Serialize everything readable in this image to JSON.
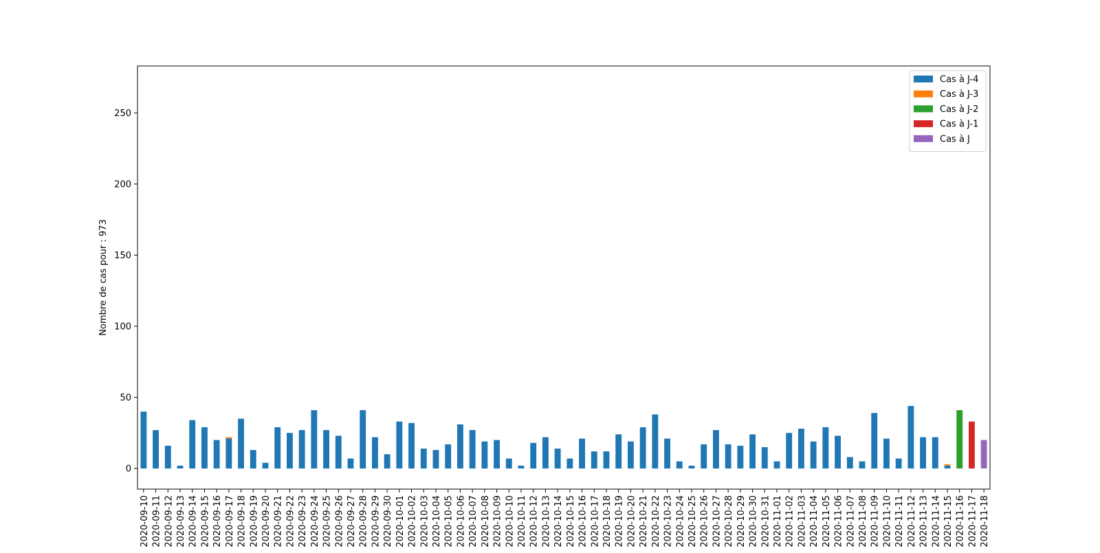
{
  "chart_data": {
    "type": "bar",
    "stacked": true,
    "title": "",
    "xlabel": "",
    "ylabel": "Nombre de cas pour : 973",
    "ylim": [
      -14.5,
      283
    ],
    "yticks": [
      0,
      50,
      100,
      150,
      200,
      250
    ],
    "grid": false,
    "legend_position": "top-right",
    "categories": [
      "2020-09-10",
      "2020-09-11",
      "2020-09-12",
      "2020-09-13",
      "2020-09-14",
      "2020-09-15",
      "2020-09-16",
      "2020-09-17",
      "2020-09-18",
      "2020-09-19",
      "2020-09-20",
      "2020-09-21",
      "2020-09-22",
      "2020-09-23",
      "2020-09-24",
      "2020-09-25",
      "2020-09-26",
      "2020-09-27",
      "2020-09-28",
      "2020-09-29",
      "2020-09-30",
      "2020-10-01",
      "2020-10-02",
      "2020-10-03",
      "2020-10-04",
      "2020-10-05",
      "2020-10-06",
      "2020-10-07",
      "2020-10-08",
      "2020-10-09",
      "2020-10-10",
      "2020-10-11",
      "2020-10-12",
      "2020-10-13",
      "2020-10-14",
      "2020-10-15",
      "2020-10-16",
      "2020-10-17",
      "2020-10-18",
      "2020-10-19",
      "2020-10-20",
      "2020-10-21",
      "2020-10-22",
      "2020-10-23",
      "2020-10-24",
      "2020-10-25",
      "2020-10-26",
      "2020-10-27",
      "2020-10-28",
      "2020-10-29",
      "2020-10-30",
      "2020-10-31",
      "2020-11-01",
      "2020-11-02",
      "2020-11-03",
      "2020-11-04",
      "2020-11-05",
      "2020-11-06",
      "2020-11-07",
      "2020-11-08",
      "2020-11-09",
      "2020-11-10",
      "2020-11-11",
      "2020-11-12",
      "2020-11-13",
      "2020-11-14",
      "2020-11-15",
      "2020-11-16",
      "2020-11-17",
      "2020-11-18"
    ],
    "series": [
      {
        "name": "Cas à J-4",
        "color": "#1f77b4",
        "values": [
          40,
          27,
          16,
          2,
          34,
          29,
          20,
          21,
          35,
          13,
          4,
          29,
          25,
          27,
          41,
          27,
          23,
          7,
          41,
          22,
          10,
          33,
          32,
          14,
          13,
          17,
          31,
          27,
          19,
          20,
          7,
          2,
          18,
          22,
          14,
          7,
          21,
          12,
          12,
          24,
          19,
          29,
          38,
          21,
          5,
          2,
          17,
          27,
          17,
          16,
          24,
          15,
          5,
          25,
          28,
          19,
          29,
          23,
          8,
          5,
          39,
          21,
          7,
          44,
          22,
          22,
          2,
          0,
          0,
          0
        ]
      },
      {
        "name": "Cas à J-3",
        "color": "#ff7f0e",
        "values": [
          0,
          0,
          0,
          0,
          0,
          0,
          0,
          1,
          0,
          0,
          0,
          0,
          0,
          0,
          0,
          0,
          0,
          0,
          0,
          0,
          0,
          0,
          0,
          0,
          0,
          0,
          0,
          0,
          0,
          0,
          0,
          0,
          0,
          0,
          0,
          0,
          0,
          0,
          0,
          0,
          0,
          0,
          0,
          0,
          0,
          0,
          0,
          0,
          0,
          0,
          0,
          0,
          0,
          0,
          0,
          0,
          0,
          0,
          0,
          0,
          0,
          0,
          0,
          0,
          0,
          0,
          1,
          0,
          0,
          0
        ]
      },
      {
        "name": "Cas à J-2",
        "color": "#2ca02c",
        "values": [
          0,
          0,
          0,
          0,
          0,
          0,
          0,
          0,
          0,
          0,
          0,
          0,
          0,
          0,
          0,
          0,
          0,
          0,
          0,
          0,
          0,
          0,
          0,
          0,
          0,
          0,
          0,
          0,
          0,
          0,
          0,
          0,
          0,
          0,
          0,
          0,
          0,
          0,
          0,
          0,
          0,
          0,
          0,
          0,
          0,
          0,
          0,
          0,
          0,
          0,
          0,
          0,
          0,
          0,
          0,
          0,
          0,
          0,
          0,
          0,
          0,
          0,
          0,
          0,
          0,
          0,
          0,
          41,
          0,
          0
        ]
      },
      {
        "name": "Cas à J-1",
        "color": "#d62728",
        "values": [
          0,
          0,
          0,
          0,
          0,
          0,
          0,
          0,
          0,
          0,
          0,
          0,
          0,
          0,
          0,
          0,
          0,
          0,
          0,
          0,
          0,
          0,
          0,
          0,
          0,
          0,
          0,
          0,
          0,
          0,
          0,
          0,
          0,
          0,
          0,
          0,
          0,
          0,
          0,
          0,
          0,
          0,
          0,
          0,
          0,
          0,
          0,
          0,
          0,
          0,
          0,
          0,
          0,
          0,
          0,
          0,
          0,
          0,
          0,
          0,
          0,
          0,
          0,
          0,
          0,
          0,
          0,
          0,
          33,
          0
        ]
      },
      {
        "name": "Cas à J",
        "color": "#9467bd",
        "values": [
          0,
          0,
          0,
          0,
          0,
          0,
          0,
          0,
          0,
          0,
          0,
          0,
          0,
          0,
          0,
          0,
          0,
          0,
          0,
          0,
          0,
          0,
          0,
          0,
          0,
          0,
          0,
          0,
          0,
          0,
          0,
          0,
          0,
          0,
          0,
          0,
          0,
          0,
          0,
          0,
          0,
          0,
          0,
          0,
          0,
          0,
          0,
          0,
          0,
          0,
          0,
          0,
          0,
          0,
          0,
          0,
          0,
          0,
          0,
          0,
          0,
          0,
          0,
          0,
          0,
          0,
          0,
          0,
          0,
          20
        ]
      }
    ]
  }
}
